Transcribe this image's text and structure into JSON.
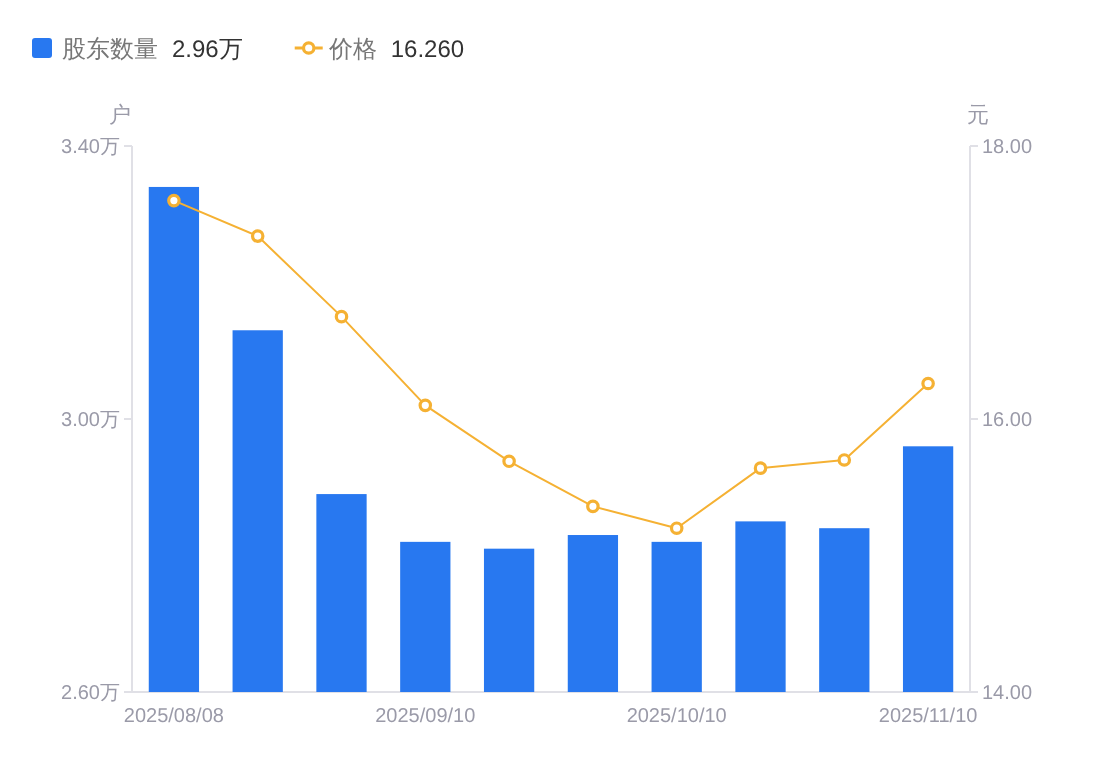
{
  "chart_data": {
    "type": "bar",
    "categories": [
      "2025/08/08",
      null,
      null,
      "2025/09/10",
      null,
      null,
      "2025/10/10",
      null,
      null,
      "2025/11/10"
    ],
    "series": [
      {
        "name": "股东数量",
        "color": "#2878f0",
        "values": [
          3.34,
          3.13,
          2.89,
          2.82,
          2.81,
          2.83,
          2.82,
          2.85,
          2.84,
          2.96
        ]
      },
      {
        "name": "价格",
        "type": "line",
        "axis": "y2",
        "color": "#f5b133",
        "values": [
          17.6,
          17.34,
          16.75,
          16.1,
          15.69,
          15.36,
          15.2,
          15.64,
          15.7,
          16.26
        ]
      }
    ],
    "ylabel": "户",
    "y2label": "元",
    "ylim": [
      2.6,
      3.4
    ],
    "yticks": [
      {
        "value": 2.6,
        "label": "2.60万"
      },
      {
        "value": 3.0,
        "label": "3.00万"
      },
      {
        "value": 3.4,
        "label": "3.40万"
      }
    ],
    "y2lim": [
      14,
      18
    ],
    "y2ticks": [
      {
        "value": 14,
        "label": "14.00"
      },
      {
        "value": 16,
        "label": "16.00"
      },
      {
        "value": 18,
        "label": "18.00"
      }
    ],
    "annotations": [
      "2.96万",
      "16.260"
    ],
    "legend": "top left",
    "marker": "circle",
    "grid": false
  }
}
